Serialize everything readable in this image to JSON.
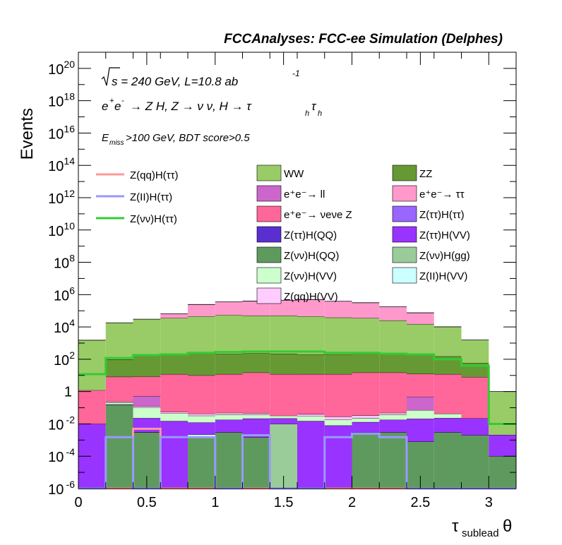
{
  "chart_data": {
    "type": "histogram-stacked",
    "title": "FCCAnalyses: FCC-ee Simulation (Delphes)",
    "ylabel": "Events",
    "xlabel": "τsublead θ",
    "xlabel_main": "τ",
    "xlabel_sub": "sublead",
    "xlabel_tail": " θ",
    "xlim": [
      0,
      3.2
    ],
    "ylog": true,
    "ylim": [
      1e-06,
      1e+21
    ],
    "xticks": [
      "0",
      "0.5",
      "1",
      "1.5",
      "2",
      "2.5",
      "3"
    ],
    "xtick_values": [
      0,
      0.5,
      1,
      1.5,
      2,
      2.5,
      3
    ],
    "yticks": [
      {
        "value": 1e-06,
        "base": "10",
        "exp": "-6"
      },
      {
        "value": 0.0001,
        "base": "10",
        "exp": "-4"
      },
      {
        "value": 0.01,
        "base": "10",
        "exp": "-2"
      },
      {
        "value": 1,
        "base": "1",
        "exp": ""
      },
      {
        "value": 100.0,
        "base": "10",
        "exp": "2"
      },
      {
        "value": 10000.0,
        "base": "10",
        "exp": "4"
      },
      {
        "value": 1000000.0,
        "base": "10",
        "exp": "6"
      },
      {
        "value": 100000000.0,
        "base": "10",
        "exp": "8"
      },
      {
        "value": 10000000000.0,
        "base": "10",
        "exp": "10"
      },
      {
        "value": 1000000000000.0,
        "base": "10",
        "exp": "12"
      },
      {
        "value": 100000000000000.0,
        "base": "10",
        "exp": "14"
      },
      {
        "value": 1e+16,
        "base": "10",
        "exp": "16"
      },
      {
        "value": 1e+18,
        "base": "10",
        "exp": "18"
      },
      {
        "value": 1e+20,
        "base": "10",
        "exp": "20"
      }
    ],
    "annotations": {
      "energy": "√s = 240 GeV, L=10.8 ab",
      "energy_lumi_exp": "-1",
      "process": "e⁺e⁻ → Z H, Z → νν, H → τhτh",
      "selection": "Emiss>100 GeV, BDT score>0.5"
    },
    "bin_edges": [
      0,
      0.2,
      0.4,
      0.6,
      0.8,
      1.0,
      1.2,
      1.4,
      1.6,
      1.8,
      2.0,
      2.2,
      2.4,
      2.6,
      2.8,
      3.0,
      3.2
    ],
    "stack_bottom_up": [
      {
        "name": "Z(νν)H(QQ)",
        "color": "#5e9a5e",
        "values": [
          0,
          0.15,
          0.003,
          0,
          0.0015,
          0.003,
          0.0015,
          0,
          0,
          0,
          0.003,
          0.003,
          0.0008,
          0.003,
          0.002,
          0.0001
        ]
      },
      {
        "name": "Z(ττ)H(QQ)",
        "color": "#5a2fd0",
        "values": [
          0,
          0,
          4e-05,
          0,
          0,
          0,
          0,
          0,
          0,
          0,
          0,
          0,
          0,
          0,
          0,
          0
        ]
      },
      {
        "name": "Z(II)H(VV)",
        "color": "#ccffff",
        "values": [
          0,
          0,
          0,
          0,
          0.0007,
          0,
          0,
          0,
          0,
          0,
          0,
          0,
          0,
          0,
          0,
          0
        ]
      },
      {
        "name": "Z(νν)H(gg)",
        "color": "#99cc99",
        "values": [
          0,
          0,
          0,
          0,
          0,
          0,
          0,
          0.01,
          0,
          0,
          0,
          0,
          0,
          0,
          0,
          0
        ]
      },
      {
        "name": "Z(ττ)H(VV)",
        "color": "#9933ff",
        "values": [
          0.01,
          0.01,
          0.02,
          0.015,
          0.01,
          0.015,
          0.02,
          0.012,
          0.015,
          0.008,
          0.01,
          0.015,
          0.02,
          0.02,
          0.02,
          0.002
        ]
      },
      {
        "name": "Z(νν)H(VV)",
        "color": "#ccffcc",
        "values": [
          0,
          0.05,
          0.08,
          0.03,
          0.02,
          0.02,
          0.015,
          0.01,
          0.015,
          0.01,
          0.01,
          0.02,
          0.05,
          0.02,
          0,
          0
        ]
      },
      {
        "name": "Z(qq)H(VV)",
        "color": "#ffccff",
        "values": [
          0,
          0.03,
          0.02,
          0.01,
          0.01,
          0.01,
          0.01,
          0,
          0.01,
          0.01,
          0.01,
          0.01,
          0,
          0,
          0,
          0
        ]
      },
      {
        "name": "Z(ττ)H(ττ)",
        "color": "#9966ff",
        "values": [
          0,
          0,
          0,
          0,
          0,
          0,
          0,
          0,
          0,
          0,
          0,
          0,
          0,
          0,
          0,
          0
        ]
      },
      {
        "name": "e⁺e⁻→ll",
        "color": "#cc66cc",
        "values": [
          0,
          0,
          0.4,
          0,
          0,
          0,
          0,
          0,
          0,
          0,
          0,
          0,
          0.4,
          0,
          0,
          0
        ]
      },
      {
        "name": "e⁺e⁻→νeνe Z",
        "color": "#ff6699",
        "values": [
          1.2,
          8,
          8,
          12,
          10,
          12,
          15,
          12,
          12,
          12,
          15,
          15,
          12,
          12,
          8,
          0
        ]
      },
      {
        "name": "ZZ",
        "color": "#669933",
        "values": [
          0,
          90,
          170,
          180,
          220,
          200,
          220,
          210,
          190,
          190,
          220,
          210,
          180,
          140,
          50,
          0
        ]
      },
      {
        "name": "WW",
        "color": "#99cc66",
        "values": [
          1500,
          18000,
          30000,
          35000,
          45000,
          55000,
          50000,
          50000,
          45000,
          38000,
          35000,
          25000,
          15000,
          10000,
          1500,
          1
        ]
      },
      {
        "name": "e⁺e⁻→ττ",
        "color": "#ff99cc",
        "values": [
          0,
          0,
          0,
          30000,
          200000,
          300000,
          350000,
          400000,
          450000,
          350000,
          280000,
          150000,
          60000,
          0,
          0,
          0
        ]
      }
    ],
    "lines": [
      {
        "name": "Z(qq)H(ττ)",
        "color": "#ff9999",
        "values": [
          0,
          0,
          0.005,
          0,
          0,
          0,
          0,
          0,
          0,
          0,
          0,
          0,
          0,
          0,
          0,
          0
        ]
      },
      {
        "name": "Z(II)H(ττ)",
        "color": "#9999ff",
        "values": [
          0,
          0.0015,
          0,
          0.0015,
          0.0015,
          0,
          0.002,
          0,
          0,
          0.0015,
          0.0025,
          0.0015,
          0,
          0,
          0,
          0
        ]
      },
      {
        "name": "Z(νν)H(ττ)",
        "color": "#33cc33",
        "values": [
          12,
          120,
          180,
          200,
          250,
          280,
          300,
          300,
          300,
          250,
          250,
          220,
          200,
          100,
          40,
          0.01
        ]
      }
    ],
    "legend_lines": [
      "Z(qq)H(ττ)",
      "Z(II)H(ττ)",
      "Z(νν)H(ττ)"
    ],
    "legend_boxes": [
      {
        "label": "WW",
        "color": "#99cc66"
      },
      {
        "label": "ZZ",
        "color": "#669933"
      },
      {
        "label": "e⁺e⁻→ ll",
        "color": "#cc66cc"
      },
      {
        "label": "e⁺e⁻→ ττ",
        "color": "#ff99cc"
      },
      {
        "label": "e⁺e⁻→ νeνe Z",
        "color": "#ff6699"
      },
      {
        "label": "Z(ττ)H(ττ)",
        "color": "#9966ff"
      },
      {
        "label": "Z(ττ)H(QQ)",
        "color": "#5a2fd0"
      },
      {
        "label": "Z(ττ)H(VV)",
        "color": "#9933ff"
      },
      {
        "label": "Z(νν)H(QQ)",
        "color": "#5e9a5e"
      },
      {
        "label": "Z(νν)H(gg)",
        "color": "#99cc99"
      },
      {
        "label": "Z(νν)H(VV)",
        "color": "#ccffcc"
      },
      {
        "label": "Z(II)H(VV)",
        "color": "#ccffff"
      },
      {
        "label": "Z(qq)H(VV)",
        "color": "#ffccff"
      }
    ]
  }
}
